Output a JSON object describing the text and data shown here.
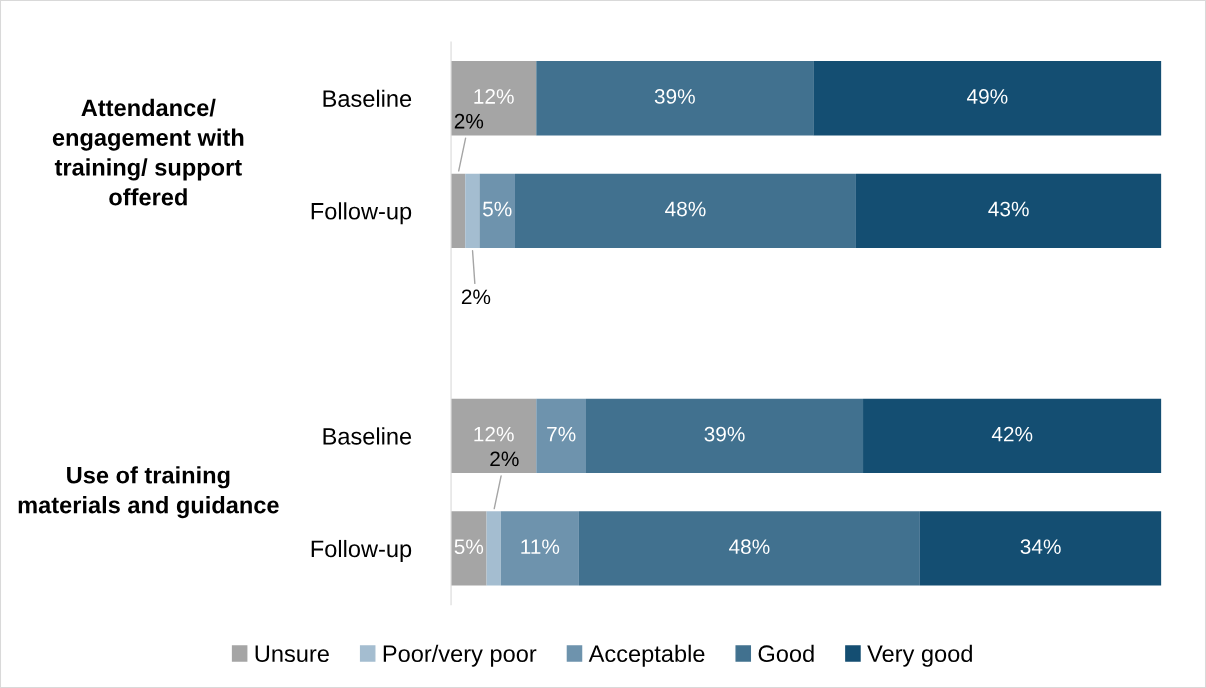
{
  "chart_data": {
    "type": "bar",
    "orientation": "horizontal",
    "stacked": true,
    "categories": [
      "Baseline",
      "Follow-up",
      null,
      "Baseline",
      "Follow-up"
    ],
    "annotations": [
      "Attendance/ engagement with training/ support offered",
      "Use of training materials and guidance"
    ],
    "series": [
      {
        "name": "Unsure",
        "color": "#a5a5a5",
        "values": [
          12,
          2,
          null,
          12,
          5
        ],
        "value_labels": [
          "12%",
          "2%",
          null,
          "12%",
          "5%"
        ]
      },
      {
        "name": "Poor/very poor",
        "color": "#a4bdd0",
        "values": [
          0,
          2,
          null,
          0,
          2
        ],
        "value_labels": [
          null,
          "2%",
          null,
          null,
          "2%"
        ]
      },
      {
        "name": "Acceptable",
        "color": "#6e93ad",
        "values": [
          0,
          5,
          null,
          7,
          11
        ],
        "value_labels": [
          null,
          "5%",
          null,
          "7%",
          "11%"
        ]
      },
      {
        "name": "Good",
        "color": "#41718f",
        "values": [
          39,
          48,
          null,
          39,
          48
        ],
        "value_labels": [
          "39%",
          "48%",
          null,
          "39%",
          "48%"
        ]
      },
      {
        "name": "Very good",
        "color": "#144e72",
        "values": [
          49,
          43,
          null,
          42,
          34
        ],
        "value_labels": [
          "49%",
          "43%",
          null,
          "42%",
          "34%"
        ]
      }
    ],
    "legend": "bottom",
    "grid": false
  }
}
